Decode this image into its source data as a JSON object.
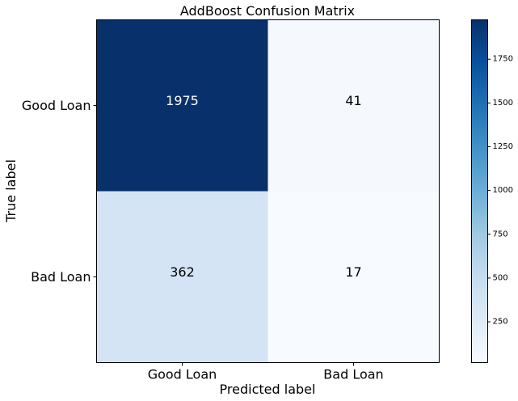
{
  "chart_data": {
    "type": "heatmap",
    "title": "AddBoost Confusion Matrix",
    "xlabel": "Predicted label",
    "ylabel": "True label",
    "x_categories": [
      "Good Loan",
      "Bad Loan"
    ],
    "y_categories": [
      "Good Loan",
      "Bad Loan"
    ],
    "values": [
      [
        1975,
        41
      ],
      [
        362,
        17
      ]
    ],
    "colormap": "Blues",
    "colorbar": {
      "min": 17,
      "max": 1975,
      "ticks": [
        "250",
        "500",
        "750",
        "1000",
        "1250",
        "1500",
        "1750"
      ]
    },
    "grid": false
  }
}
